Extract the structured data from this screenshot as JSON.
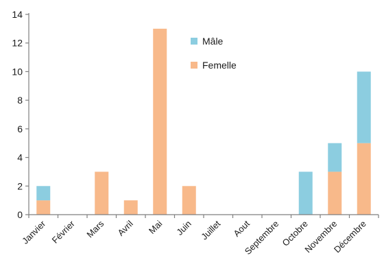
{
  "chart_data": {
    "type": "bar",
    "stacked": true,
    "categories": [
      "Janvier",
      "Février",
      "Mars",
      "Avril",
      "Mai",
      "Juin",
      "Juillet",
      "Aout",
      "Septembre",
      "Octobre",
      "Novembre",
      "Décembre"
    ],
    "series": [
      {
        "name": "Femelle",
        "color": "#f8b98a",
        "values": [
          1,
          0,
          3,
          1,
          13,
          2,
          0,
          0,
          0,
          0,
          3,
          5
        ]
      },
      {
        "name": "Mâle",
        "color": "#8ccde0",
        "values": [
          1,
          0,
          0,
          0,
          0,
          0,
          0,
          0,
          0,
          3,
          2,
          5
        ]
      }
    ],
    "legend_order": [
      "Mâle",
      "Femelle"
    ],
    "legend_position": "inside-top-right",
    "ylim": [
      0,
      14
    ],
    "yticks": [
      0,
      2,
      4,
      6,
      8,
      10,
      12,
      14
    ],
    "grid": false,
    "axis_color": "#7f7f7f"
  }
}
